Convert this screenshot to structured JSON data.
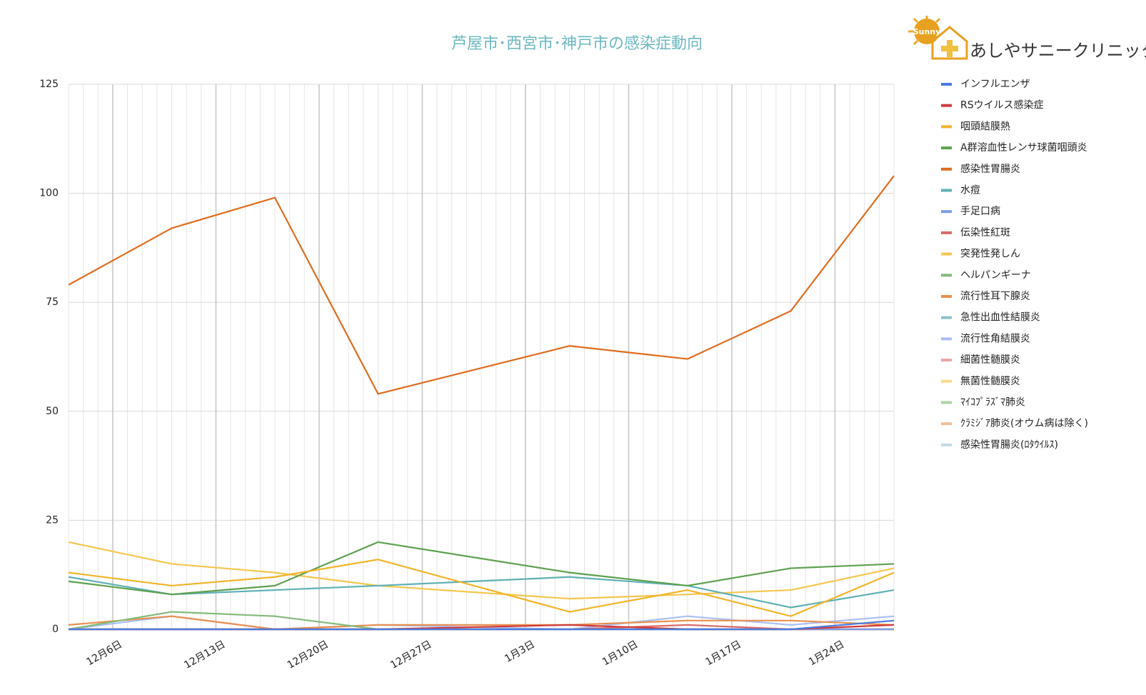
{
  "chart_data": {
    "type": "line",
    "title": "芦屋市･西宮市･神戸市の感染症動向",
    "logo": {
      "brand": "Sunny",
      "name": "あしやサニークリニック"
    },
    "x": [
      "12-03",
      "12-10",
      "12-17",
      "12-24",
      "01-06",
      "01-14",
      "01-21",
      "01-28"
    ],
    "xlim": [
      "12-03",
      "01-28"
    ],
    "xticks": [
      {
        "value": "12-06",
        "label": "12月6日"
      },
      {
        "value": "12-13",
        "label": "12月13日"
      },
      {
        "value": "12-20",
        "label": "12月20日"
      },
      {
        "value": "12-27",
        "label": "12月27日"
      },
      {
        "value": "01-03",
        "label": "1月3日"
      },
      {
        "value": "01-10",
        "label": "1月10日"
      },
      {
        "value": "01-17",
        "label": "1月17日"
      },
      {
        "value": "01-24",
        "label": "1月24日"
      }
    ],
    "ylim": [
      0,
      125
    ],
    "yticks": [
      0,
      25,
      50,
      75,
      100,
      125
    ],
    "grid": true,
    "legend": "right",
    "series": [
      {
        "name": "インフルエンザ",
        "color": "#4a7be0",
        "values": [
          0,
          0,
          0,
          0,
          0,
          0,
          0,
          2
        ]
      },
      {
        "name": "RSウイルス感染症",
        "color": "#d03b3b",
        "values": [
          0,
          0,
          0,
          0,
          1,
          0,
          0,
          1
        ]
      },
      {
        "name": "咽頭結膜熱",
        "color": "#f0b429",
        "values": [
          13,
          10,
          12,
          16,
          4,
          9,
          3,
          13
        ]
      },
      {
        "name": "A群溶血性レンサ球菌咽頭炎",
        "color": "#5ea14f",
        "values": [
          11,
          8,
          10,
          20,
          13,
          10,
          14,
          15
        ]
      },
      {
        "name": "感染性胃腸炎",
        "color": "#e06c1f",
        "values": [
          79,
          92,
          99,
          54,
          65,
          62,
          73,
          104
        ]
      },
      {
        "name": "水痘",
        "color": "#5fb0b5",
        "values": [
          12,
          8,
          9,
          10,
          12,
          10,
          5,
          9
        ]
      },
      {
        "name": "手足口病",
        "color": "#7b9be8",
        "values": [
          0,
          0,
          0,
          0,
          0,
          0,
          0,
          0
        ]
      },
      {
        "name": "伝染性紅斑",
        "color": "#d96a6a",
        "values": [
          0,
          0,
          0,
          0,
          0,
          1,
          0,
          0
        ]
      },
      {
        "name": "突発性発しん",
        "color": "#f4c74f",
        "values": [
          20,
          15,
          13,
          10,
          7,
          8,
          9,
          14
        ]
      },
      {
        "name": "ヘルパンギーナ",
        "color": "#83bb7a",
        "values": [
          0,
          4,
          3,
          0,
          0,
          0,
          0,
          0
        ]
      },
      {
        "name": "流行性耳下腺炎",
        "color": "#e89050",
        "values": [
          1,
          3,
          0,
          1,
          1,
          2,
          2,
          1
        ]
      },
      {
        "name": "急性出血性結膜炎",
        "color": "#88c3cb",
        "values": [
          0,
          0,
          0,
          0,
          0,
          0,
          0,
          0
        ]
      },
      {
        "name": "流行性角結膜炎",
        "color": "#a9bff5",
        "values": [
          0,
          3,
          0,
          1,
          0,
          3,
          1,
          3
        ]
      },
      {
        "name": "細菌性髄膜炎",
        "color": "#eba3a3",
        "values": [
          0,
          0,
          0,
          0,
          0,
          0,
          0,
          0
        ]
      },
      {
        "name": "無菌性髄膜炎",
        "color": "#f5dc8a",
        "values": [
          0,
          0,
          0,
          0,
          0,
          0,
          0,
          0
        ]
      },
      {
        "name": "ﾏｲｺﾌﾟﾗｽﾞﾏ肺炎",
        "color": "#b0d4a8",
        "values": [
          0,
          0,
          0,
          0,
          0,
          0,
          0,
          0
        ]
      },
      {
        "name": "ｸﾗﾐｼﾞｱ肺炎(オウム病は除く)",
        "color": "#f0c09a",
        "values": [
          0,
          0,
          0,
          0,
          0,
          0,
          0,
          0
        ]
      },
      {
        "name": "感染性胃腸炎(ﾛﾀｳｲﾙｽ)",
        "color": "#c0dbe8",
        "values": [
          0,
          0,
          0,
          0,
          0,
          0,
          0,
          0
        ]
      }
    ]
  }
}
